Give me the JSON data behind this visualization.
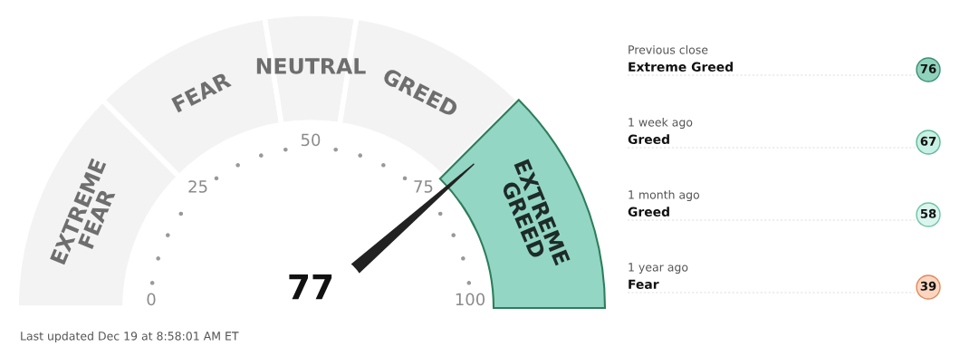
{
  "chart_data": [
    {
      "type": "donut",
      "categories": [
        "EXTREME FEAR",
        "FEAR",
        "NEUTRAL",
        "GREED",
        "EXTREME GREED"
      ],
      "values": [
        25,
        20,
        10,
        20,
        25
      ],
      "colors": [
        "#f3f3f3",
        "#f3f3f3",
        "#f3f3f3",
        "#f3f3f3",
        "#93d6c3"
      ],
      "needle": "EXTREME GREED",
      "annotations": [
        "77",
        "0",
        "25",
        "50",
        "75",
        "100",
        "Last updated Dec 19 at 8:58:01 AM ET"
      ]
    },
    {
      "type": "other",
      "annotations": [
        "Previous close",
        "Extreme Greed",
        "76",
        "1 week ago",
        "Greed",
        "67",
        "1 month ago",
        "Greed",
        "58",
        "1 year ago",
        "Fear",
        "39"
      ]
    }
  ]
}
